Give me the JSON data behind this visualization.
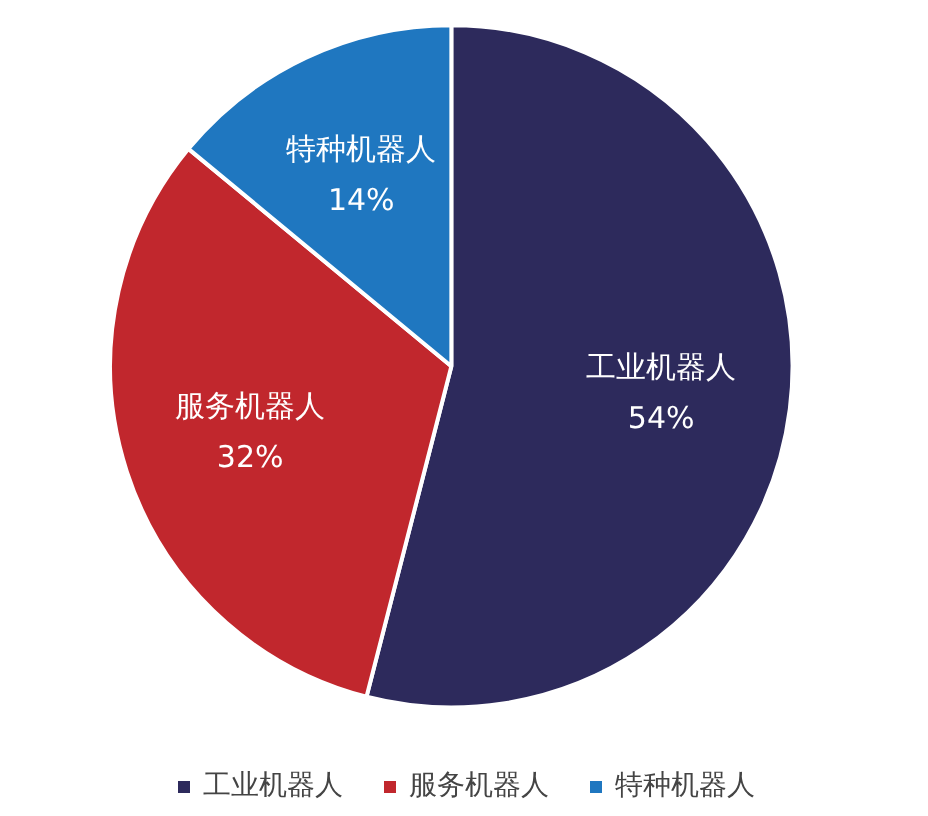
{
  "chart_data": {
    "type": "pie",
    "categories": [
      "工业机器人",
      "服务机器人",
      "特种机器人"
    ],
    "values": [
      54,
      32,
      14
    ],
    "value_labels": [
      "54%",
      "32%",
      "14%"
    ],
    "colors": [
      "#2d2a5c",
      "#c1272d",
      "#1f77c0"
    ],
    "legend": "bottom"
  }
}
